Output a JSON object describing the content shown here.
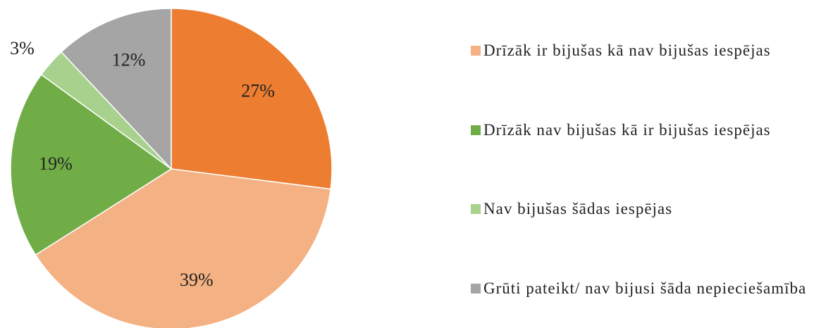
{
  "chart_data": {
    "type": "pie",
    "categories": [
      null,
      "Drīzāk ir bijušas kā nav bijušas iespējas",
      "Drīzāk nav bijušas kā ir bijušas iespējas",
      "Nav bijušas šādas iespējas",
      "Grūti pateikt/ nav bijusi šāda nepieciešamība"
    ],
    "values": [
      27,
      39,
      19,
      3,
      12
    ],
    "value_labels": [
      "27%",
      "39%",
      "19%",
      "3%",
      "12%"
    ],
    "colors": [
      "#ed7d31",
      "#f4b183",
      "#70ad47",
      "#a9d18e",
      "#a5a5a5"
    ]
  }
}
